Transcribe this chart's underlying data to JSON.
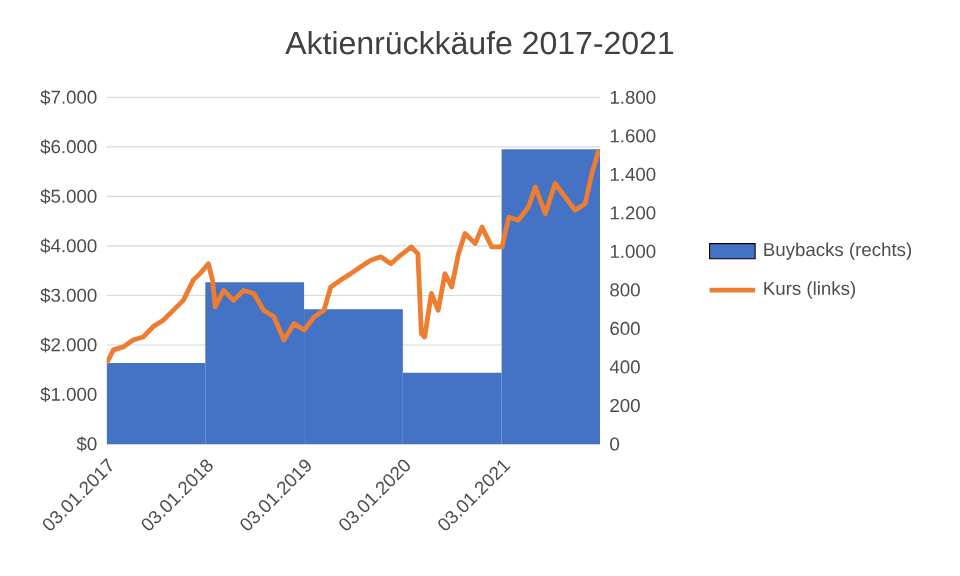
{
  "chart_data": {
    "type": "bar",
    "title": "Aktienrückkäufe 2017-2021",
    "xlim": [
      "2017-01-03",
      "2021-12-31"
    ],
    "xticks": [
      {
        "value": "2017-01-03",
        "label": "03.01.2017"
      },
      {
        "value": "2018-01-03",
        "label": "03.01.2018"
      },
      {
        "value": "2019-01-03",
        "label": "03.01.2019"
      },
      {
        "value": "2020-01-03",
        "label": "03.01.2020"
      },
      {
        "value": "2021-01-03",
        "label": "03.01.2021"
      }
    ],
    "ylim": [
      0,
      7000
    ],
    "yticks": [
      {
        "value": 0,
        "label": "$0"
      },
      {
        "value": 1000,
        "label": "$1.000"
      },
      {
        "value": 2000,
        "label": "$2.000"
      },
      {
        "value": 3000,
        "label": "$3.000"
      },
      {
        "value": 4000,
        "label": "$4.000"
      },
      {
        "value": 5000,
        "label": "$5.000"
      },
      {
        "value": 6000,
        "label": "$6.000"
      },
      {
        "value": 7000,
        "label": "$7.000"
      }
    ],
    "y2lim": [
      0,
      1800
    ],
    "y2ticks": [
      {
        "value": 0,
        "label": "0"
      },
      {
        "value": 200,
        "label": "200"
      },
      {
        "value": 400,
        "label": "400"
      },
      {
        "value": 600,
        "label": "600"
      },
      {
        "value": 800,
        "label": "800"
      },
      {
        "value": 1000,
        "label": "1.000"
      },
      {
        "value": 1200,
        "label": "1.200"
      },
      {
        "value": 1400,
        "label": "1.400"
      },
      {
        "value": 1600,
        "label": "1.600"
      },
      {
        "value": 1800,
        "label": "1.800"
      }
    ],
    "grid": "y",
    "legend": "right",
    "series": [
      {
        "name": "Buybacks (rechts)",
        "axis": "y2",
        "color": "#4472c4",
        "x": [
          "2017-07-04",
          "2018-07-04",
          "2019-07-04",
          "2020-07-03",
          "2021-07-03"
        ],
        "values": [
          420,
          840,
          700,
          370,
          1530
        ]
      },
      {
        "name": "Kurs (links)",
        "type": "line",
        "color": "#ed7d31",
        "x": [
          "2017-01-03",
          "2017-01-28",
          "2017-03-05",
          "2017-04-11",
          "2017-05-18",
          "2017-06-24",
          "2017-07-31",
          "2017-09-06",
          "2017-10-13",
          "2017-11-19",
          "2017-12-14",
          "2018-01-14",
          "2018-01-29",
          "2018-02-08",
          "2018-03-11",
          "2018-04-17",
          "2018-05-24",
          "2018-07-01",
          "2018-08-06",
          "2018-09-13",
          "2018-10-20",
          "2018-11-26",
          "2019-01-03",
          "2019-02-09",
          "2019-03-17",
          "2019-04-11",
          "2019-05-18",
          "2019-06-24",
          "2019-07-31",
          "2019-09-06",
          "2019-10-13",
          "2019-11-19",
          "2019-12-27",
          "2020-02-03",
          "2020-02-27",
          "2020-03-11",
          "2020-03-23",
          "2020-04-17",
          "2020-05-12",
          "2020-06-06",
          "2020-07-01",
          "2020-07-26",
          "2020-08-19",
          "2020-09-26",
          "2020-10-21",
          "2020-11-26",
          "2021-01-03",
          "2021-01-28",
          "2021-03-05",
          "2021-04-11",
          "2021-05-06",
          "2021-06-12",
          "2021-07-18",
          "2021-08-24",
          "2021-09-30",
          "2021-11-06",
          "2021-12-01",
          "2021-12-26"
        ],
        "values": [
          1630,
          1900,
          1960,
          2100,
          2160,
          2370,
          2500,
          2700,
          2900,
          3310,
          3440,
          3640,
          3310,
          2770,
          3100,
          2900,
          3100,
          3040,
          2700,
          2570,
          2100,
          2430,
          2300,
          2570,
          2700,
          3170,
          3310,
          3440,
          3580,
          3710,
          3780,
          3640,
          3820,
          3980,
          3840,
          2230,
          2160,
          3040,
          2700,
          3440,
          3170,
          3840,
          4250,
          4050,
          4380,
          3980,
          3980,
          4580,
          4520,
          4790,
          5190,
          4650,
          5260,
          4990,
          4720,
          4850,
          5460,
          5930
        ]
      }
    ]
  }
}
